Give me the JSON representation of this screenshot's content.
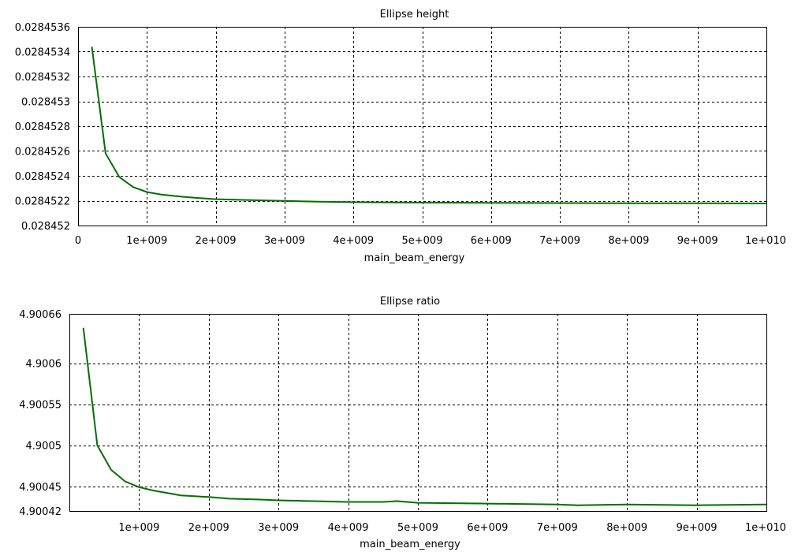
{
  "chart_data": [
    {
      "type": "line",
      "title": "Ellipse height",
      "xlabel": "main_beam_energy",
      "ylabel": "",
      "xlim": [
        0,
        10000000000
      ],
      "ylim": [
        0.028452,
        0.0284536
      ],
      "xticks": [
        0,
        1000000000,
        2000000000,
        3000000000,
        4000000000,
        5000000000,
        6000000000,
        7000000000,
        8000000000,
        9000000000,
        10000000000
      ],
      "xtick_labels": [
        "0",
        "1e+009",
        "2e+009",
        "3e+009",
        "4e+009",
        "5e+009",
        "6e+009",
        "7e+009",
        "8e+009",
        "9e+009",
        "1e+010"
      ],
      "yticks": [
        0.028452,
        0.0284522,
        0.0284524,
        0.0284526,
        0.0284528,
        0.028453,
        0.0284532,
        0.0284534,
        0.0284536
      ],
      "ytick_labels": [
        "0.028452",
        "0.0284522",
        "0.0284524",
        "0.0284526",
        "0.0284528",
        "0.028453",
        "0.0284532",
        "0.0284534",
        "0.0284536"
      ],
      "grid": true,
      "color": "#007000",
      "series": [
        {
          "x": [
            200000000,
            400000000,
            600000000,
            800000000,
            1000000000,
            1200000000,
            1400000000,
            1600000000,
            1800000000,
            2000000000,
            2500000000,
            3000000000,
            3500000000,
            4000000000,
            5000000000,
            6000000000,
            7000000000,
            8000000000,
            9000000000,
            10000000000
          ],
          "y": [
            0.02845344,
            0.02845258,
            0.02845239,
            0.02845231,
            0.02845227,
            0.02845225,
            0.028452238,
            0.028452228,
            0.02845222,
            0.028452212,
            0.028452205,
            0.028452198,
            0.028452192,
            0.028452188,
            0.028452185,
            0.028452183,
            0.028452181,
            0.02845218,
            0.028452179,
            0.028452178
          ]
        }
      ]
    },
    {
      "type": "line",
      "title": "Ellipse ratio",
      "xlabel": "main_beam_energy",
      "ylabel": "",
      "xlim": [
        0,
        10000000000
      ],
      "ylim": [
        4.90042,
        4.90066
      ],
      "xticks": [
        1000000000,
        2000000000,
        3000000000,
        4000000000,
        5000000000,
        6000000000,
        7000000000,
        8000000000,
        9000000000,
        10000000000
      ],
      "xtick_labels": [
        "1e+009",
        "2e+009",
        "3e+009",
        "4e+009",
        "5e+009",
        "6e+009",
        "7e+009",
        "8e+009",
        "9e+009",
        "1e+010"
      ],
      "yticks": [
        4.90042,
        4.90045,
        4.9005,
        4.90055,
        4.9006,
        4.90066
      ],
      "ytick_labels": [
        "4.90042",
        "4.90045",
        "4.9005",
        "4.90055",
        "4.9006",
        "4.90066"
      ],
      "grid": true,
      "color": "#007000",
      "series": [
        {
          "x": [
            200000000,
            400000000,
            600000000,
            800000000,
            1000000000,
            1200000000,
            1400000000,
            1600000000,
            1800000000,
            2000000000,
            2300000000,
            2700000000,
            3000000000,
            3500000000,
            4000000000,
            4500000000,
            4700000000,
            5000000000,
            6000000000,
            7000000000,
            7300000000,
            8000000000,
            9000000000,
            10000000000
          ],
          "y": [
            4.900643,
            4.9005,
            4.90047,
            4.900456,
            4.900449,
            4.900445,
            4.900442,
            4.900439,
            4.900438,
            4.900437,
            4.900435,
            4.900434,
            4.900433,
            4.900432,
            4.900431,
            4.900431,
            4.900432,
            4.90043,
            4.900429,
            4.900428,
            4.900427,
            4.900428,
            4.900427,
            4.900428
          ]
        }
      ]
    }
  ]
}
